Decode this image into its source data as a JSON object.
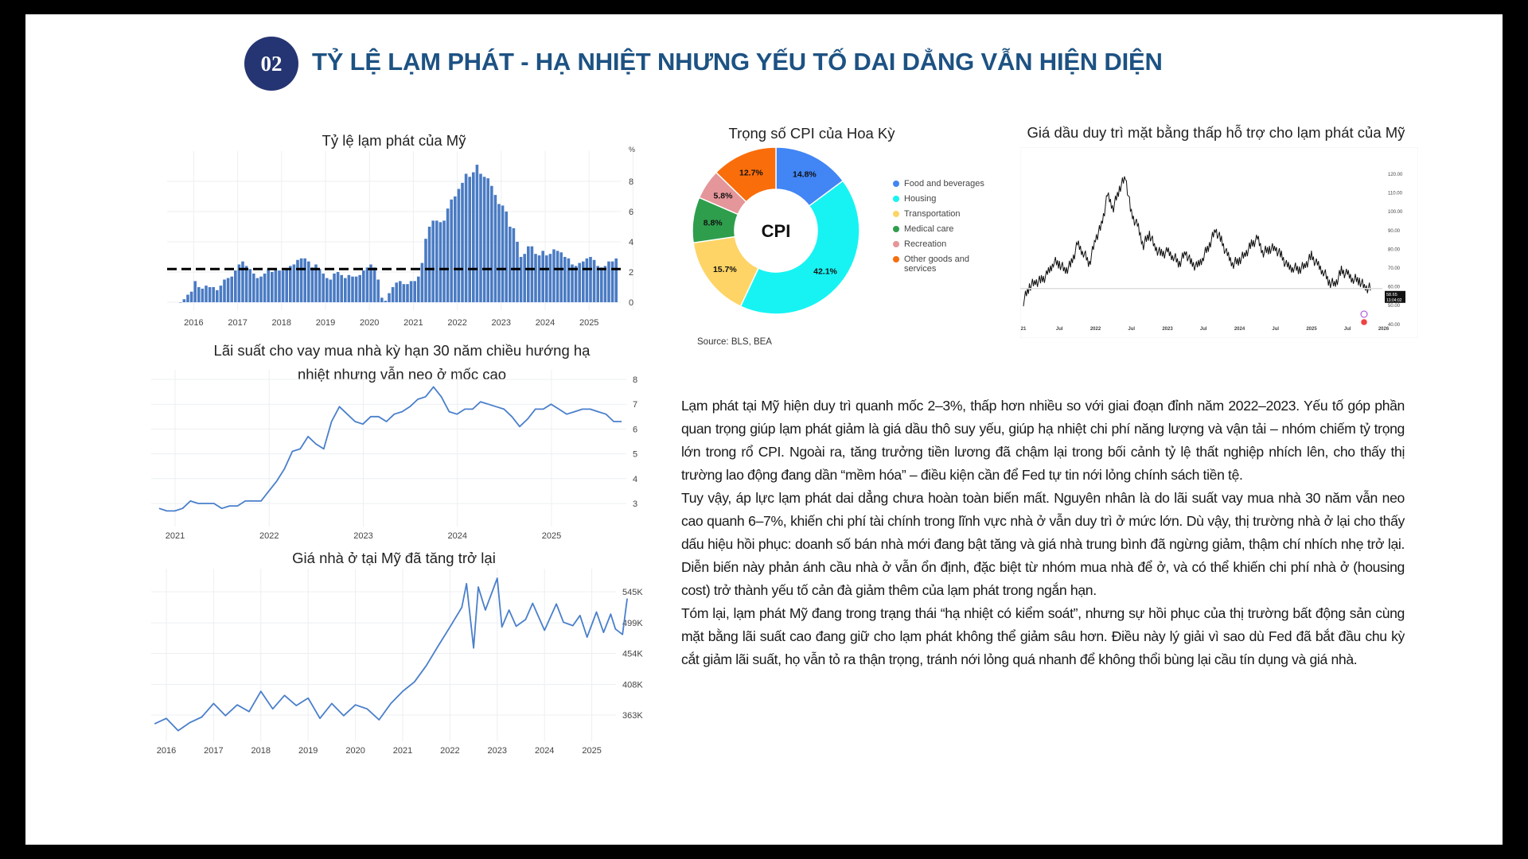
{
  "header": {
    "number": "02",
    "title": "TỶ LỆ LẠM PHÁT - HẠ NHIỆT NHƯNG YẾU TỐ DAI DẲNG VẪN HIỆN DIỆN"
  },
  "colors": {
    "accent": "#1d5283",
    "badge": "#253573",
    "line": "#4a7fcb",
    "bar": "#4a7bc3"
  },
  "body": {
    "paragraphs": [
      "Lạm phát tại Mỹ hiện duy trì quanh mốc 2–3%, thấp hơn nhiều so với giai đoạn đỉnh năm 2022–2023. Yếu tố góp phần quan trọng giúp lạm phát giảm là giá dầu thô suy yếu, giúp hạ nhiệt chi phí năng lượng và vận tải – nhóm chiếm tỷ trọng lớn trong rổ CPI. Ngoài ra, tăng trưởng tiền lương đã chậm lại trong bối cảnh tỷ lệ thất nghiệp nhích lên, cho thấy thị trường lao động đang dần “mềm hóa” – điều kiện cần để Fed tự tin nới lỏng chính sách tiền tệ.",
      "Tuy vậy, áp lực lạm phát dai dẳng chưa hoàn toàn biến mất. Nguyên nhân là do lãi suất vay mua nhà 30 năm vẫn neo cao quanh 6–7%, khiến chi phí tài chính trong lĩnh vực nhà ở vẫn duy trì ở mức lớn. Dù vậy, thị trường nhà ở lại cho thấy dấu hiệu hồi phục: doanh số bán nhà mới đang bật tăng và giá nhà trung bình đã ngừng giảm, thậm chí nhích nhẹ trở lại. Diễn biến này phản ánh cầu nhà ở vẫn ổn định, đặc biệt từ nhóm mua nhà để ở, và có thể khiến chi phí nhà ở (housing cost) trở thành yếu tố cản đà giảm thêm của lạm phát trong ngắn hạn.",
      "Tóm lại, lạm phát Mỹ đang trong trạng thái “hạ nhiệt có kiểm soát”, nhưng sự hồi phục của thị trường bất động sản cùng mặt bằng lãi suất cao đang giữ cho lạm phát không thể giảm sâu hơn. Điều này lý giải vì sao dù Fed đã bắt đầu chu kỳ cắt giảm lãi suất, họ vẫn tỏ ra thận trọng, tránh nới lỏng quá nhanh để không thổi bùng lại cầu tín dụng và giá nhà."
    ]
  },
  "chart_data": [
    {
      "id": "inflation",
      "type": "bar",
      "title": "Tỷ lệ lạm phát của Mỹ",
      "ylabel": "%",
      "start": "2015-09",
      "ylim": [
        -1,
        9.5
      ],
      "yticks": [
        0,
        2,
        4,
        6,
        8
      ],
      "xticks": [
        "2016",
        "2017",
        "2018",
        "2019",
        "2020",
        "2021",
        "2022",
        "2023",
        "2024",
        "2025"
      ],
      "target_line": 2.2,
      "values": [
        0.0,
        0.2,
        0.5,
        0.7,
        1.4,
        1.0,
        0.9,
        1.1,
        1.0,
        1.0,
        0.8,
        1.1,
        1.5,
        1.6,
        1.7,
        2.1,
        2.5,
        2.7,
        2.4,
        2.2,
        1.9,
        1.6,
        1.7,
        1.9,
        2.2,
        2.0,
        2.2,
        2.1,
        2.1,
        2.2,
        2.4,
        2.5,
        2.8,
        2.9,
        2.9,
        2.7,
        2.3,
        2.5,
        2.2,
        1.9,
        1.6,
        1.5,
        1.9,
        2.0,
        1.8,
        1.6,
        1.8,
        1.7,
        1.7,
        1.8,
        2.1,
        2.3,
        2.5,
        2.3,
        1.5,
        0.3,
        0.1,
        0.6,
        1.0,
        1.3,
        1.4,
        1.2,
        1.2,
        1.4,
        1.4,
        1.7,
        2.6,
        4.2,
        5.0,
        5.4,
        5.4,
        5.3,
        5.4,
        6.2,
        6.8,
        7.0,
        7.5,
        7.9,
        8.5,
        8.3,
        8.6,
        9.1,
        8.5,
        8.3,
        8.2,
        7.7,
        7.1,
        6.5,
        6.4,
        6.0,
        5.0,
        4.9,
        4.0,
        3.0,
        3.2,
        3.7,
        3.7,
        3.2,
        3.1,
        3.4,
        3.1,
        3.2,
        3.5,
        3.4,
        3.3,
        3.0,
        2.9,
        2.5,
        2.4,
        2.6,
        2.7,
        2.9,
        3.0,
        2.8,
        2.4,
        2.3,
        2.4,
        2.7,
        2.7,
        2.9
      ]
    },
    {
      "id": "mortgage",
      "type": "line",
      "title_lines": [
        "Lãi suất cho vay mua nhà kỳ hạn 30 năm chiều hướng hạ",
        "nhiệt nhưng vẫn neo ở mốc cao"
      ],
      "yticks": [
        3,
        4,
        5,
        6,
        7,
        8
      ],
      "xticks": [
        "2021",
        "2022",
        "2023",
        "2024",
        "2025"
      ],
      "start": 2020.83,
      "step": 0.0833,
      "values": [
        2.8,
        2.7,
        2.7,
        2.8,
        3.1,
        3.0,
        3.0,
        3.0,
        2.8,
        2.9,
        2.9,
        3.1,
        3.1,
        3.1,
        3.5,
        3.9,
        4.4,
        5.1,
        5.2,
        5.7,
        5.4,
        5.2,
        6.3,
        6.9,
        6.6,
        6.3,
        6.2,
        6.5,
        6.5,
        6.3,
        6.6,
        6.7,
        6.9,
        7.2,
        7.3,
        7.7,
        7.3,
        6.7,
        6.6,
        6.8,
        6.8,
        7.1,
        7.0,
        6.9,
        6.8,
        6.5,
        6.1,
        6.4,
        6.8,
        6.8,
        7.0,
        6.8,
        6.6,
        6.7,
        6.8,
        6.8,
        6.7,
        6.6,
        6.3,
        6.3
      ]
    },
    {
      "id": "house",
      "type": "line",
      "title": "Giá nhà ở tại Mỹ đã tăng trở lại",
      "yticks": [
        "545K",
        "499K",
        "454K",
        "408K",
        "363K"
      ],
      "ytick_values": [
        545,
        499,
        454,
        408,
        363
      ],
      "xticks": [
        "2016",
        "2017",
        "2018",
        "2019",
        "2020",
        "2021",
        "2022",
        "2023",
        "2024",
        "2025"
      ],
      "x": [
        2015.75,
        2016.0,
        2016.25,
        2016.5,
        2016.75,
        2017.0,
        2017.25,
        2017.5,
        2017.75,
        2018.0,
        2018.25,
        2018.5,
        2018.75,
        2019.0,
        2019.25,
        2019.5,
        2019.75,
        2020.0,
        2020.25,
        2020.5,
        2020.75,
        2021.0,
        2021.25,
        2021.5,
        2021.75,
        2022.0,
        2022.25,
        2022.35,
        2022.5,
        2022.6,
        2022.75,
        2023.0,
        2023.1,
        2023.25,
        2023.4,
        2023.6,
        2023.75,
        2024.0,
        2024.25,
        2024.4,
        2024.6,
        2024.75,
        2024.9,
        2025.1,
        2025.25,
        2025.4,
        2025.5,
        2025.65,
        2025.75
      ],
      "values": [
        350,
        358,
        340,
        352,
        360,
        380,
        362,
        378,
        368,
        398,
        372,
        392,
        377,
        388,
        358,
        380,
        362,
        378,
        372,
        356,
        380,
        398,
        412,
        436,
        465,
        493,
        522,
        557,
        462,
        552,
        518,
        565,
        493,
        518,
        494,
        504,
        528,
        488,
        527,
        500,
        495,
        510,
        478,
        515,
        485,
        512,
        490,
        482,
        535
      ]
    },
    {
      "id": "cpi_weights",
      "type": "pie",
      "title": "Trọng số CPI của Hoa Kỳ",
      "center_label": "CPI",
      "source": "Source: BLS, BEA",
      "slices": [
        {
          "name": "Food and beverages",
          "value": 14.8,
          "label": "14.8%",
          "color": "#4285f4"
        },
        {
          "name": "Housing",
          "value": 42.1,
          "label": "42.1%",
          "color": "#17f3f3"
        },
        {
          "name": "Transportation",
          "value": 15.7,
          "label": "15.7%",
          "color": "#fdd465"
        },
        {
          "name": "Medical care",
          "value": 8.8,
          "label": "8.8%",
          "color": "#2e9e4c"
        },
        {
          "name": "Recreation",
          "value": 5.8,
          "label": "5.8%",
          "color": "#e5969a"
        },
        {
          "name": "Other goods and services",
          "value": 12.7,
          "label": "12.7%",
          "color": "#fa6d0b"
        }
      ]
    },
    {
      "id": "oil",
      "type": "line",
      "title": "Giá dầu duy trì mặt bằng thấp hỗ trợ cho lạm phát của Mỹ",
      "start": 2021.0,
      "step": 0.0833,
      "yticks": [
        "120.00",
        "110.00",
        "100.00",
        "90.00",
        "80.00",
        "70.00",
        "60.00",
        "50.00",
        "40.00"
      ],
      "ytick_values": [
        120,
        110,
        100,
        90,
        80,
        70,
        60,
        50,
        40
      ],
      "xticks": [
        "21",
        "Jul",
        "2022",
        "Jul",
        "2023",
        "Jul",
        "2024",
        "Jul",
        "2025",
        "Jul",
        "2026"
      ],
      "last_price": "58.65",
      "last_time": "13:04:02",
      "values": [
        52,
        60,
        62,
        63,
        66,
        73,
        72,
        68,
        72,
        82,
        78,
        72,
        85,
        92,
        108,
        102,
        112,
        118,
        98,
        92,
        82,
        88,
        80,
        77,
        78,
        76,
        72,
        78,
        72,
        70,
        76,
        82,
        90,
        84,
        76,
        72,
        74,
        77,
        82,
        85,
        78,
        80,
        80,
        76,
        70,
        70,
        69,
        71,
        76,
        71,
        68,
        62,
        61,
        68,
        66,
        64,
        63,
        59
      ]
    }
  ]
}
